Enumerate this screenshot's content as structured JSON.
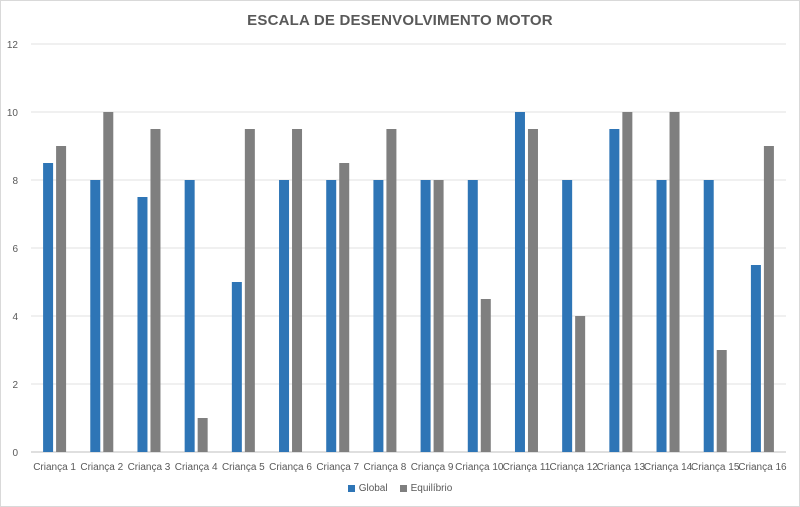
{
  "chart_data": {
    "type": "bar",
    "title": "ESCALA DE DESENVOLVIMENTO MOTOR",
    "xlabel": "",
    "ylabel": "",
    "ylim": [
      0,
      12
    ],
    "yticks": [
      0,
      2,
      4,
      6,
      8,
      10,
      12
    ],
    "grid": true,
    "legend_position": "bottom",
    "categories": [
      "Criança 1",
      "Criança 2",
      "Criança 3",
      "Criança 4",
      "Criança 5",
      "Criança 6",
      "Criança 7",
      "Criança 8",
      "Criança 9",
      "Criança 10",
      "Criança 11",
      "Criança 12",
      "Criança 13",
      "Criança 14",
      "Criança 15",
      "Criança 16"
    ],
    "series": [
      {
        "name": "Global",
        "color": "#2e75b6",
        "values": [
          8.5,
          8,
          7.5,
          8,
          5,
          8,
          8,
          8,
          8,
          8,
          10,
          8,
          9.5,
          8,
          8,
          5.5
        ]
      },
      {
        "name": "Equilíbrio",
        "color": "#7f7f7f",
        "values": [
          9,
          10,
          9.5,
          1,
          9.5,
          9.5,
          8.5,
          9.5,
          8,
          4.5,
          9.5,
          4,
          10,
          10,
          3,
          9
        ]
      }
    ]
  }
}
